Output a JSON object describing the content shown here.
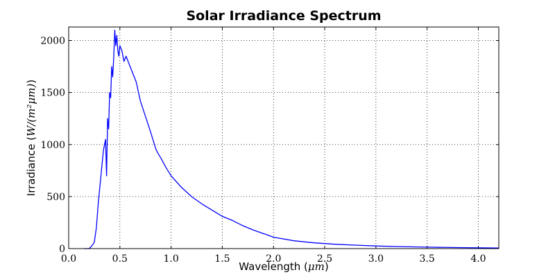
{
  "chart_data": {
    "type": "line",
    "title": "Solar Irradiance Spectrum",
    "xlabel": {
      "prefix": "Wavelength (",
      "unit": "μm",
      "suffix": ")"
    },
    "ylabel": {
      "prefix": "Irradiance (",
      "unit": "W/(m²μm)",
      "suffix": ")"
    },
    "xlim": [
      0.0,
      4.2
    ],
    "ylim": [
      0,
      2130
    ],
    "x_ticks": [
      0.0,
      0.5,
      1.0,
      1.5,
      2.0,
      2.5,
      3.0,
      3.5,
      4.0
    ],
    "x_tick_labels": [
      "0.0",
      "0.5",
      "1.0",
      "1.5",
      "2.0",
      "2.5",
      "3.0",
      "3.5",
      "4.0"
    ],
    "y_ticks": [
      0,
      500,
      1000,
      1500,
      2000
    ],
    "y_tick_labels": [
      "0",
      "500",
      "1000",
      "1500",
      "2000"
    ],
    "grid": true,
    "grid_style": "dotted",
    "series": [
      {
        "color": "#0000ff",
        "x": [
          0.15,
          0.2,
          0.22,
          0.25,
          0.27,
          0.29,
          0.3,
          0.31,
          0.32,
          0.33,
          0.34,
          0.35,
          0.36,
          0.37,
          0.38,
          0.39,
          0.4,
          0.41,
          0.42,
          0.43,
          0.44,
          0.45,
          0.46,
          0.47,
          0.48,
          0.49,
          0.5,
          0.52,
          0.54,
          0.56,
          0.58,
          0.6,
          0.62,
          0.64,
          0.66,
          0.7,
          0.75,
          0.8,
          0.85,
          0.87,
          0.9,
          0.95,
          1.0,
          1.1,
          1.2,
          1.3,
          1.4,
          1.5,
          1.6,
          1.7,
          1.8,
          1.9,
          2.0,
          2.2,
          2.4,
          2.6,
          2.8,
          3.0,
          3.2,
          3.5,
          3.8,
          4.2
        ],
        "y": [
          0,
          0,
          20,
          60,
          200,
          450,
          550,
          650,
          750,
          850,
          950,
          1000,
          1050,
          700,
          1250,
          1150,
          1500,
          1450,
          1750,
          1650,
          1850,
          2100,
          1950,
          2050,
          1900,
          1850,
          1950,
          1900,
          1800,
          1850,
          1800,
          1750,
          1700,
          1650,
          1600,
          1420,
          1270,
          1120,
          960,
          920,
          870,
          780,
          700,
          590,
          500,
          430,
          370,
          310,
          270,
          220,
          180,
          145,
          110,
          75,
          55,
          42,
          33,
          25,
          20,
          14,
          10,
          6
        ]
      }
    ]
  }
}
